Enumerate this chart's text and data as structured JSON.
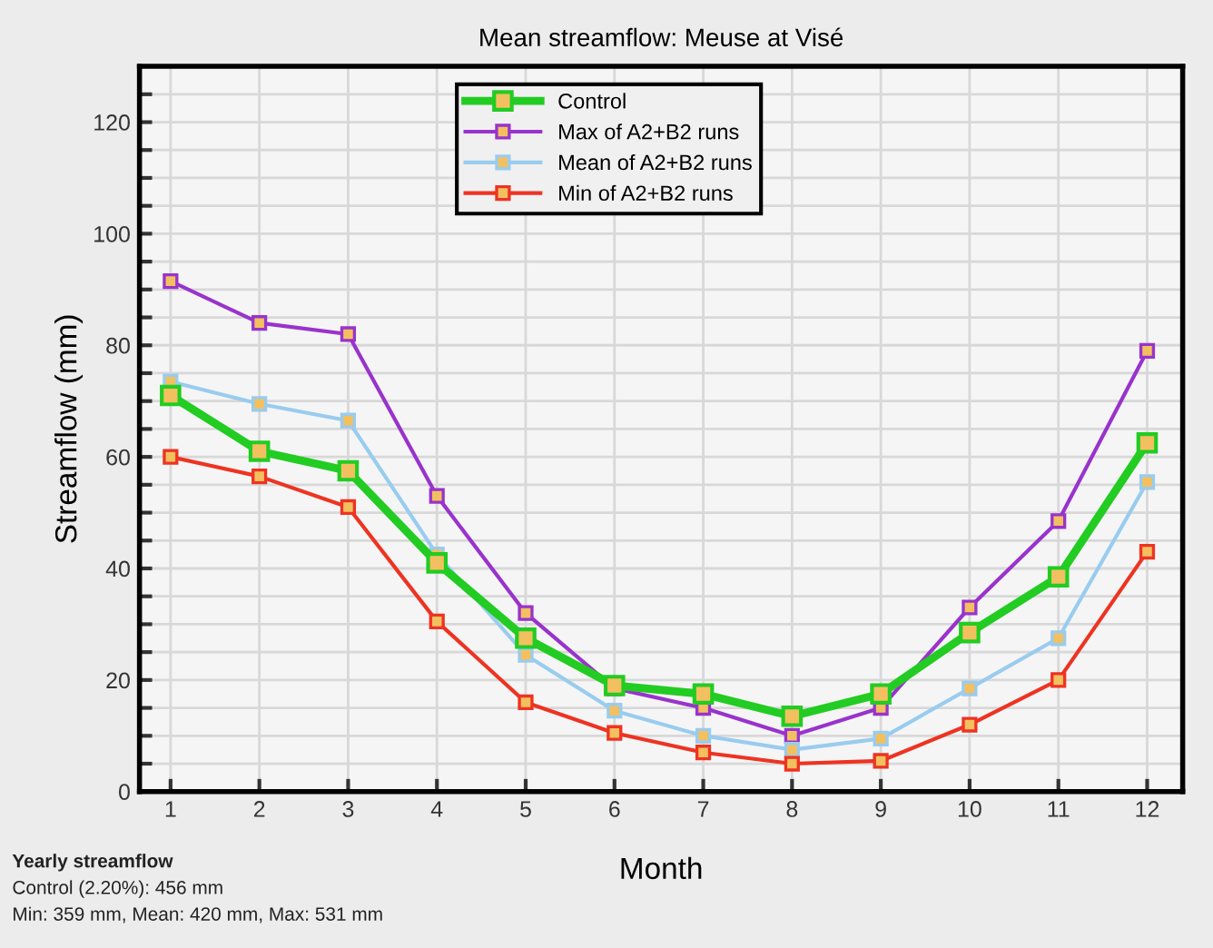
{
  "chart_data": {
    "type": "line",
    "title": "Mean streamflow: Meuse at Visé",
    "xlabel": "Month",
    "ylabel": "Streamflow (mm)",
    "x": [
      1,
      2,
      3,
      4,
      5,
      6,
      7,
      8,
      9,
      10,
      11,
      12
    ],
    "series": [
      {
        "name": "Control",
        "color": "#22cc22",
        "values": [
          71,
          61,
          57.5,
          41,
          27.5,
          19,
          17.5,
          13.5,
          17.5,
          28.5,
          38.5,
          62.5
        ]
      },
      {
        "name": "Max of A2+B2 runs",
        "color": "#9933cc",
        "values": [
          91.5,
          84,
          82,
          53,
          32,
          18.5,
          15,
          10,
          15,
          33,
          48.5,
          79
        ]
      },
      {
        "name": "Mean of A2+B2 runs",
        "color": "#99ccee",
        "values": [
          73.5,
          69.5,
          66.5,
          42.5,
          24.5,
          14.5,
          10,
          7.5,
          9.5,
          18.5,
          27.5,
          55.5
        ]
      },
      {
        "name": "Min of A2+B2 runs",
        "color": "#ee3322",
        "values": [
          60,
          56.5,
          51,
          30.5,
          16,
          10.5,
          7,
          5,
          5.5,
          12,
          20,
          43
        ]
      }
    ],
    "xlim": [
      0.65,
      12.4
    ],
    "ylim": [
      0,
      130
    ],
    "xticks": [
      1,
      2,
      3,
      4,
      5,
      6,
      7,
      8,
      9,
      10,
      11,
      12
    ],
    "yticks": [
      0,
      {
        "value": 5,
        "label": null
      },
      {
        "value": 10,
        "label": null
      },
      {
        "value": 15,
        "label": null
      },
      20,
      {
        "value": 25,
        "label": null
      },
      {
        "value": 30,
        "label": null
      },
      {
        "value": 35,
        "label": null
      },
      40,
      {
        "value": 45,
        "label": null
      },
      {
        "value": 50,
        "label": null
      },
      {
        "value": 55,
        "label": null
      },
      60,
      {
        "value": 65,
        "label": null
      },
      {
        "value": 70,
        "label": null
      },
      {
        "value": 75,
        "label": null
      },
      80,
      {
        "value": 85,
        "label": null
      },
      {
        "value": 90,
        "label": null
      },
      {
        "value": 95,
        "label": null
      },
      100,
      {
        "value": 105,
        "label": null
      },
      {
        "value": 110,
        "label": null
      },
      {
        "value": 115,
        "label": null
      },
      120,
      {
        "value": 125,
        "label": null
      }
    ],
    "grid": true,
    "legend": "top",
    "marker": "square",
    "line_style": "solid",
    "annotations": [
      "Yearly streamflow",
      "Control (2.20%): 456 mm",
      "Min: 359 mm, Mean: 420 mm, Max: 531 mm"
    ]
  }
}
